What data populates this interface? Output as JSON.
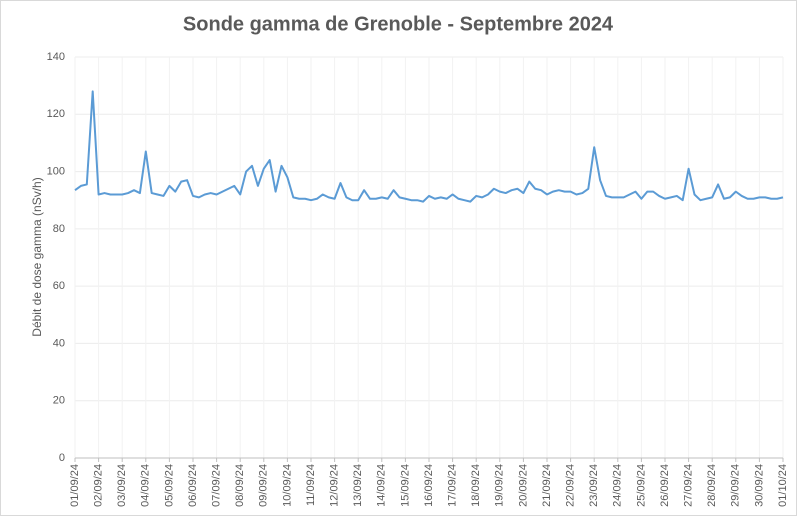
{
  "chart_data": {
    "type": "line",
    "title": "Sonde gamma de Grenoble - Septembre 2024",
    "y_label": "Débit de dose gamma (nSv/h)",
    "color": "#5b9bd5",
    "grid": true,
    "ylim": [
      0,
      140
    ],
    "yticks": [
      0,
      20,
      40,
      60,
      80,
      100,
      120,
      140
    ],
    "categories": [
      "01/09/24",
      null,
      null,
      null,
      "02/09/24",
      null,
      null,
      null,
      "03/09/24",
      null,
      null,
      null,
      "04/09/24",
      null,
      null,
      null,
      "05/09/24",
      null,
      null,
      null,
      "06/09/24",
      null,
      null,
      null,
      "07/09/24",
      null,
      null,
      null,
      "08/09/24",
      null,
      null,
      null,
      "09/09/24",
      null,
      null,
      null,
      "10/09/24",
      null,
      null,
      null,
      "11/09/24",
      null,
      null,
      null,
      "12/09/24",
      null,
      null,
      null,
      "13/09/24",
      null,
      null,
      null,
      "14/09/24",
      null,
      null,
      null,
      "15/09/24",
      null,
      null,
      null,
      "16/09/24",
      null,
      null,
      null,
      "17/09/24",
      null,
      null,
      null,
      "18/09/24",
      null,
      null,
      null,
      "19/09/24",
      null,
      null,
      null,
      "20/09/24",
      null,
      null,
      null,
      "21/09/24",
      null,
      null,
      null,
      "22/09/24",
      null,
      null,
      null,
      "23/09/24",
      null,
      null,
      null,
      "24/09/24",
      null,
      null,
      null,
      "25/09/24",
      null,
      null,
      null,
      "26/09/24",
      null,
      null,
      null,
      "27/09/24",
      null,
      null,
      null,
      "28/09/24",
      null,
      null,
      null,
      "29/09/24",
      null,
      null,
      null,
      "30/09/24",
      null,
      null,
      null,
      "01/10/24"
    ],
    "values": [
      93.5,
      95,
      95.5,
      128,
      92,
      92.5,
      92,
      92,
      92,
      92.5,
      93.5,
      92.5,
      107,
      92.5,
      92,
      91.5,
      95,
      93,
      96.5,
      97,
      91.5,
      91,
      92,
      92.5,
      92,
      93,
      94,
      95,
      92,
      100,
      102,
      95,
      101,
      104,
      93,
      102,
      98,
      91,
      90.5,
      90.5,
      90,
      90.5,
      92,
      91,
      90.5,
      96,
      91,
      90,
      90,
      93.5,
      90.5,
      90.5,
      91,
      90.5,
      93.5,
      91,
      90.5,
      90,
      90,
      89.5,
      91.5,
      90.5,
      91,
      90.5,
      92,
      90.5,
      90,
      89.5,
      91.5,
      91,
      92,
      94,
      93,
      92.5,
      93.5,
      94,
      92.5,
      96.5,
      94,
      93.5,
      92,
      93,
      93.5,
      93,
      93,
      92,
      92.5,
      94,
      108.5,
      97,
      91.5,
      91,
      91,
      91,
      92,
      93,
      90.5,
      93,
      93,
      91.5,
      90.5,
      91,
      91.5,
      90,
      101,
      92,
      90,
      90.5,
      91,
      95.5,
      90.5,
      91,
      93,
      91.5,
      90.5,
      90.5,
      91,
      91,
      90.5,
      90.5,
      91
    ]
  }
}
